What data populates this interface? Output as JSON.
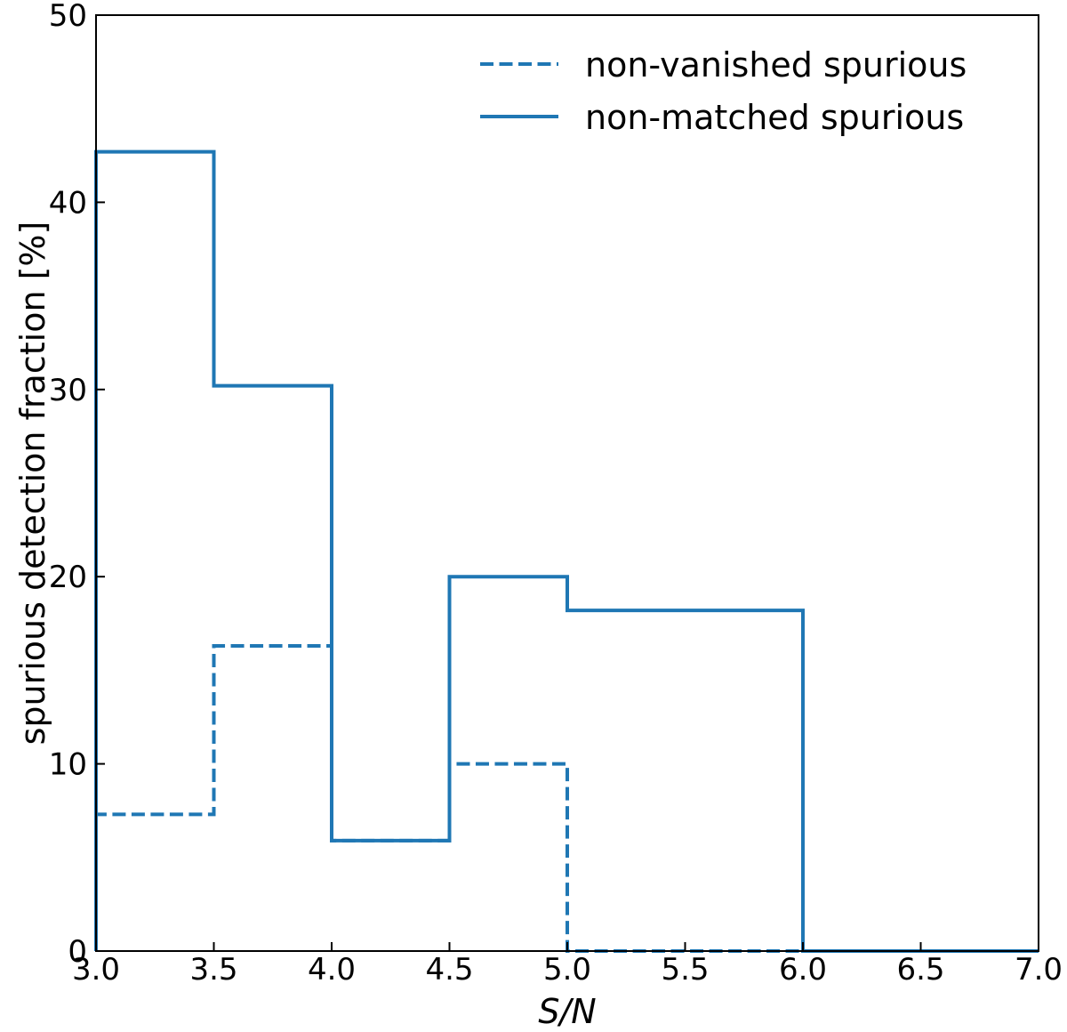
{
  "chart_data": {
    "type": "step-histogram",
    "xlabel": "S/N",
    "ylabel": "spurious detection fraction [%]",
    "xlim": [
      3.0,
      7.0
    ],
    "ylim": [
      0,
      50
    ],
    "xticks": [
      "3.0",
      "3.5",
      "4.0",
      "4.5",
      "5.0",
      "5.5",
      "6.0",
      "6.5",
      "7.0"
    ],
    "yticks": [
      "0",
      "10",
      "20",
      "30",
      "40",
      "50"
    ],
    "bin_edges": [
      3.0,
      3.5,
      4.0,
      4.5,
      5.0,
      6.0,
      7.0
    ],
    "legend_position": "top-right",
    "series": [
      {
        "name": "non-vanished spurious",
        "style": "dashed",
        "color": "#1f77b4",
        "values": [
          7.3,
          16.3,
          5.9,
          10.0,
          0.0,
          0.0
        ]
      },
      {
        "name": "non-matched spurious",
        "style": "solid",
        "color": "#1f77b4",
        "values": [
          42.7,
          30.2,
          5.9,
          20.0,
          18.2,
          0.0
        ]
      }
    ]
  }
}
